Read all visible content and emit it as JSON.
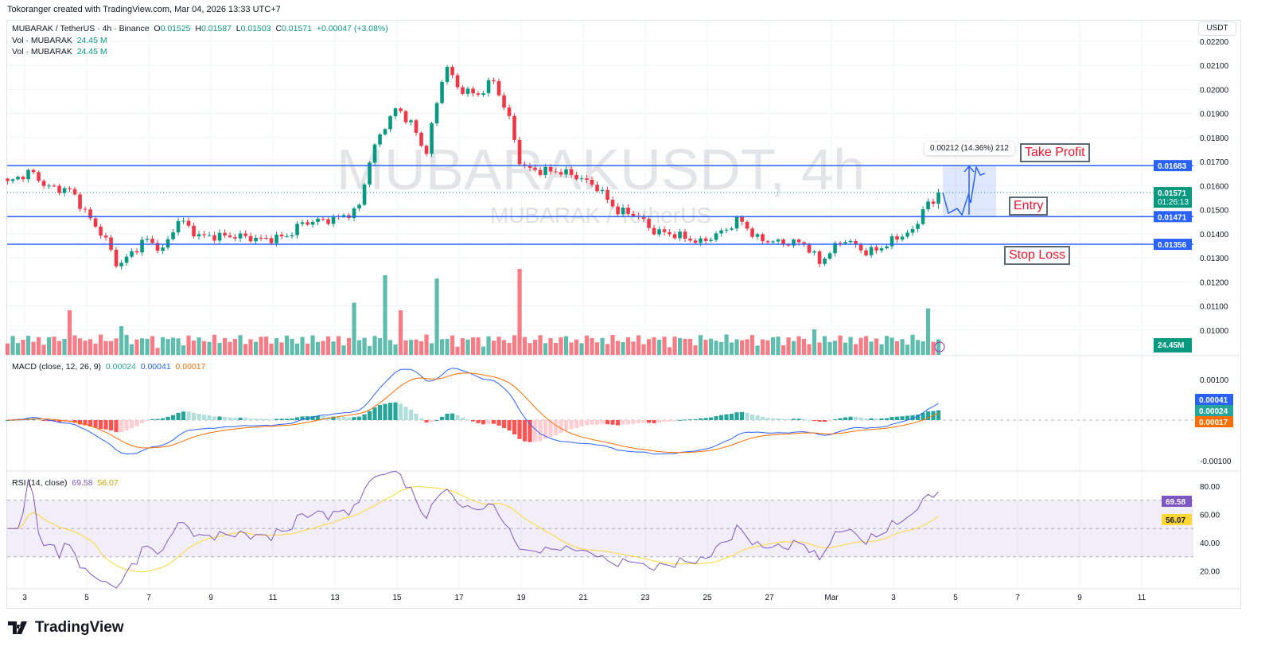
{
  "credit": "Tokoranger created with TradingView.com, Mar 04, 2026 13:33 UTC+7",
  "legend": {
    "symbol": "MUBARAK / TetherUS · 4h · Binance",
    "o_label": "O",
    "o": "0.01525",
    "h_label": "H",
    "h": "0.01587",
    "l_label": "L",
    "l": "0.01503",
    "c_label": "C",
    "c": "0.01571",
    "change": "+0.00047 (+3.08%)",
    "vol1_label": "Vol · MUBARAK",
    "vol1": "24.45 M",
    "vol2_label": "Vol · MUBARAK",
    "vol2": "24.45 M",
    "macd_label": "MACD (close, 12, 26, 9)",
    "macd_hist": "0.00024",
    "macd_line": "0.00041",
    "macd_signal": "0.00017",
    "rsi_label": "RSI (14, close)",
    "rsi": "69.58",
    "rsi_ma": "56.07"
  },
  "currency": "USDT",
  "watermark": {
    "title": "MUBARAKUSDT, 4h",
    "subtitle": "MUBARAK / TetherUS"
  },
  "annotations": {
    "take_profit": "Take Profit",
    "entry": "Entry",
    "stop_loss": "Stop Loss",
    "measure": "0.00212 (14.36%) 212"
  },
  "logo": "TradingView",
  "colors": {
    "up": "#089981",
    "down": "#f23645",
    "level": "#2962ff",
    "macd": "#2962ff",
    "signal": "#ff6d00",
    "rsi": "#7e57c2",
    "rsi_ma": "#fdd835"
  },
  "chart_data": {
    "type": "candlestick",
    "title": "MUBARAKUSDT, 4h",
    "ylim": [
      0.0095,
      0.0222
    ],
    "price_ticks": [
      "0.02200",
      "0.02100",
      "0.02000",
      "0.01900",
      "0.01800",
      "0.01700",
      "0.01600",
      "0.01500",
      "0.01400",
      "0.01300",
      "0.01200",
      "0.01100",
      "0.01000"
    ],
    "x_ticks": [
      {
        "t": 3,
        "label": "3"
      },
      {
        "t": 5,
        "label": "5"
      },
      {
        "t": 7,
        "label": "7"
      },
      {
        "t": 9,
        "label": "9"
      },
      {
        "t": 11,
        "label": "11"
      },
      {
        "t": 13,
        "label": "13"
      },
      {
        "t": 15,
        "label": "15"
      },
      {
        "t": 17,
        "label": "17"
      },
      {
        "t": 19,
        "label": "19"
      },
      {
        "t": 21,
        "label": "21"
      },
      {
        "t": 23,
        "label": "23"
      },
      {
        "t": 25,
        "label": "25"
      },
      {
        "t": 27,
        "label": "27"
      },
      {
        "t": 29,
        "label": "Mar"
      },
      {
        "t": 31,
        "label": "3"
      },
      {
        "t": 33,
        "label": "5"
      },
      {
        "t": 35,
        "label": "7"
      },
      {
        "t": 37,
        "label": "9"
      },
      {
        "t": 39,
        "label": "11"
      }
    ],
    "close_path_days_price": [
      [
        2.45,
        0.01611
      ],
      [
        3.2,
        0.0166
      ],
      [
        3.7,
        0.01594
      ],
      [
        4.5,
        0.0158
      ],
      [
        5.0,
        0.01479
      ],
      [
        5.6,
        0.01379
      ],
      [
        6.0,
        0.01264
      ],
      [
        6.4,
        0.01313
      ],
      [
        6.9,
        0.0138
      ],
      [
        7.45,
        0.0133
      ],
      [
        7.97,
        0.01462
      ],
      [
        8.6,
        0.0139
      ],
      [
        9.9,
        0.0139
      ],
      [
        10.7,
        0.01375
      ],
      [
        11.45,
        0.0139
      ],
      [
        11.95,
        0.01445
      ],
      [
        12.97,
        0.01462
      ],
      [
        13.74,
        0.01495
      ],
      [
        14.13,
        0.0171
      ],
      [
        14.5,
        0.01826
      ],
      [
        15.0,
        0.01925
      ],
      [
        15.54,
        0.01842
      ],
      [
        15.92,
        0.01726
      ],
      [
        16.56,
        0.02107
      ],
      [
        16.95,
        0.02007
      ],
      [
        17.59,
        0.01974
      ],
      [
        18.1,
        0.0204
      ],
      [
        18.62,
        0.01875
      ],
      [
        19.0,
        0.01677
      ],
      [
        19.64,
        0.0166
      ],
      [
        20.15,
        0.0166
      ],
      [
        20.67,
        0.01645
      ],
      [
        21.44,
        0.01594
      ],
      [
        22.08,
        0.01495
      ],
      [
        22.72,
        0.01479
      ],
      [
        23.23,
        0.01412
      ],
      [
        24.0,
        0.01395
      ],
      [
        24.77,
        0.01363
      ],
      [
        25.54,
        0.01412
      ],
      [
        26.05,
        0.01462
      ],
      [
        26.56,
        0.0138
      ],
      [
        27.33,
        0.01363
      ],
      [
        28.1,
        0.01363
      ],
      [
        28.62,
        0.0128
      ],
      [
        29.38,
        0.0138
      ],
      [
        30.15,
        0.0132
      ],
      [
        30.67,
        0.01346
      ],
      [
        31.18,
        0.0139
      ],
      [
        31.69,
        0.01412
      ],
      [
        31.95,
        0.01512
      ],
      [
        32.33,
        0.01528
      ],
      [
        32.51,
        0.01571
      ]
    ],
    "last_candle": {
      "open": 0.01525,
      "high": 0.01587,
      "low": 0.01503,
      "close": 0.01571
    },
    "current_price": 0.01571,
    "countdown": "01:26:13",
    "levels": [
      {
        "name": "take-profit",
        "price": 0.01683,
        "label": "0.01683"
      },
      {
        "name": "entry",
        "price": 0.01471,
        "label": "0.01471"
      },
      {
        "name": "stop-loss",
        "price": 0.01356,
        "label": "0.01356"
      }
    ],
    "volume_last_label": "24.45M",
    "volume_spikes_days_millions": [
      [
        4.5,
        70
      ],
      [
        6.2,
        45
      ],
      [
        13.6,
        82
      ],
      [
        14.6,
        125
      ],
      [
        15.1,
        70
      ],
      [
        16.2,
        120
      ],
      [
        19.0,
        135
      ],
      [
        28.5,
        40
      ],
      [
        32.2,
        73
      ]
    ],
    "macd_ticks": [
      "0.00100",
      "-0.00100"
    ],
    "rsi_ticks": [
      "80.00",
      "60.00",
      "40.00",
      "20.00"
    ],
    "rsi_levels": [
      70,
      50,
      30
    ]
  }
}
